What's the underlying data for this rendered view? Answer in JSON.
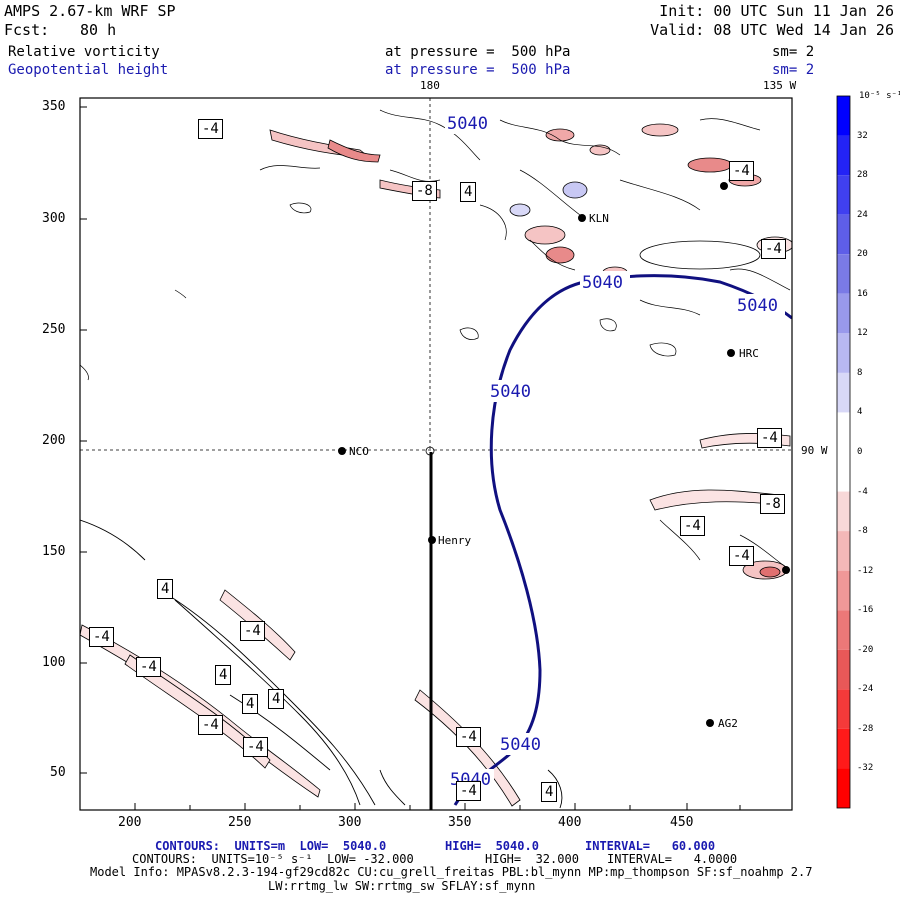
{
  "header": {
    "model": "AMPS 2.67-km WRF SP",
    "init": "Init: 00 UTC Sun 11 Jan 26",
    "fcst_label": "Fcst:",
    "fcst_value": "80 h",
    "valid": "Valid: 08 UTC Wed 14 Jan 26",
    "field1": "Relative vorticity",
    "field1_level": "at pressure =  500 hPa",
    "field1_sm": "sm= 2",
    "field2": "Geopotential height",
    "field2_level": "at pressure =  500 hPa",
    "field2_sm": "sm= 2"
  },
  "map": {
    "lon_labels": [
      "180",
      "135 W",
      "90 W"
    ],
    "stations": [
      "NCO",
      "Henry",
      "HRC",
      "AG2",
      "KLN"
    ],
    "height_contour_label": "5040",
    "vort_labels": [
      "-4",
      "-8",
      "4"
    ]
  },
  "axes": {
    "x_ticks": [
      "200",
      "250",
      "300",
      "350",
      "400",
      "450"
    ],
    "y_ticks": [
      "50",
      "100",
      "150",
      "200",
      "250",
      "300",
      "350"
    ]
  },
  "colorbar": {
    "unit": "10⁻⁵ s⁻¹",
    "labels": [
      "32",
      "28",
      "24",
      "20",
      "16",
      "12",
      "8",
      "4",
      "0",
      "-4",
      "-8",
      "-12",
      "-16",
      "-20",
      "-24",
      "-28",
      "-32"
    ],
    "colors": [
      "#0000ff",
      "#2323f6",
      "#4040f0",
      "#5e5ee8",
      "#7a7ae6",
      "#9999ec",
      "#b8b8f2",
      "#d8d8f7",
      "#ffffff",
      "#ffffff",
      "#f8d8d8",
      "#f4b8b8",
      "#f09898",
      "#ec7878",
      "#e85858",
      "#f43a3a",
      "#ff1a1a",
      "#ff0000"
    ]
  },
  "footer": {
    "line1_a": "CONTOURS:  UNITS=m  LOW=  5040.0",
    "line1_b": "HIGH=  5040.0",
    "line1_c": "INTERVAL=   60.000",
    "line2_a": "CONTOURS:  UNITS=10⁻⁵ s⁻¹  LOW= -32.000",
    "line2_b": "HIGH=  32.000",
    "line2_c": "INTERVAL=   4.0000",
    "line3": "Model Info: MPASv8.2.3-194-gf29cd82c CU:cu_grell_freitas PBL:bl_mynn MP:mp_thompson SF:sf_noahmp 2.7",
    "line4": "LW:rrtmg_lw SW:rrtmg_sw SFLAY:sf_mynn"
  }
}
